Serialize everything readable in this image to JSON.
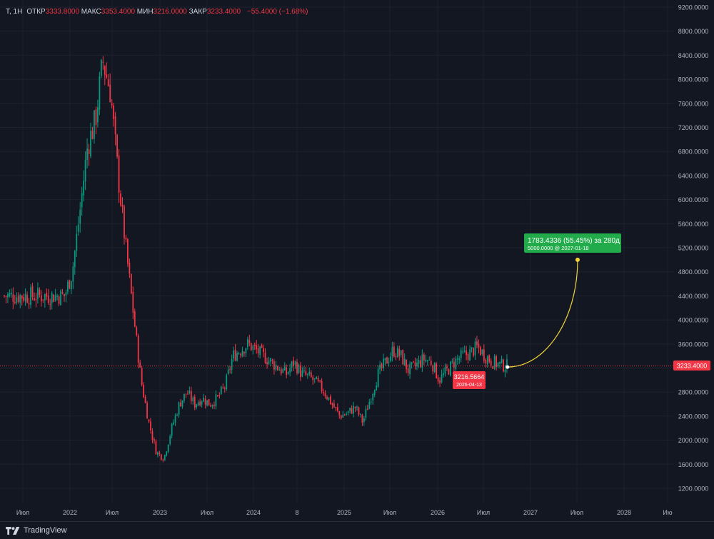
{
  "legend": {
    "symbol": "T, 1Н",
    "open_label": "ОТКР",
    "open": "3333.8000",
    "high_label": "МАКС",
    "high": "3353.4000",
    "low_label": "МИН",
    "low": "3216.0000",
    "close_label": "ЗАКР",
    "close": "3233.4000",
    "change": "−55.4000 (−1.68%)"
  },
  "price_label": "3233.4000",
  "marker": {
    "price": "3216.5664",
    "date": "2026-04-13"
  },
  "target": {
    "line1": "1783.4336 (55.45%) за 280д",
    "line2": "5000.0000 @ 2027-01-18"
  },
  "brand": {
    "name": "TradingView"
  },
  "colors": {
    "up": "#089981",
    "down": "#f23645",
    "background": "#131722",
    "grid": "#1e222d",
    "axis_text": "#b2b5be",
    "projection": "#f2d43a",
    "target_bg": "#22ab4b",
    "marker_bg": "#f23645"
  },
  "chart_data": {
    "type": "candlestick",
    "y_axis": {
      "side": "right",
      "min": 1200,
      "max": 9200,
      "ticks": [
        "9200.0000",
        "8800.0000",
        "8400.0000",
        "8000.0000",
        "7600.0000",
        "7200.0000",
        "6800.0000",
        "6400.0000",
        "6000.0000",
        "5600.0000",
        "5200.0000",
        "4800.0000",
        "4400.0000",
        "4000.0000",
        "3600.0000",
        "3200.0000",
        "2800.0000",
        "2400.0000",
        "2000.0000",
        "1600.0000",
        "1200.0000"
      ]
    },
    "x_axis": {
      "ticks": [
        "Июл",
        "2022",
        "Июл",
        "2023",
        "Июл",
        "2024",
        "8",
        "2025",
        "Июл",
        "2026",
        "Июл",
        "2027",
        "Июл",
        "2028",
        "Ию"
      ]
    },
    "price_path": [
      [
        "2021-06",
        4400
      ],
      [
        "2021-07",
        4800
      ],
      [
        "2021-08",
        5800
      ],
      [
        "2021-09",
        6900
      ],
      [
        "2021-10",
        7300
      ],
      [
        "2021-11",
        8300
      ],
      [
        "2021-12",
        7800
      ],
      [
        "2022-01",
        6400
      ],
      [
        "2022-02",
        5200
      ],
      [
        "2022-03",
        4100
      ],
      [
        "2022-04",
        3000
      ],
      [
        "2022-05",
        2300
      ],
      [
        "2022-06",
        1800
      ],
      [
        "2022-07",
        1700
      ],
      [
        "2022-08",
        2200
      ],
      [
        "2022-09",
        2600
      ],
      [
        "2022-10",
        2800
      ],
      [
        "2022-11",
        2600
      ],
      [
        "2022-12",
        2700
      ],
      [
        "2023-01",
        2600
      ],
      [
        "2023-02",
        2700
      ],
      [
        "2023-03",
        2900
      ],
      [
        "2023-04",
        3400
      ],
      [
        "2023-05",
        3500
      ],
      [
        "2023-06",
        3600
      ],
      [
        "2023-07",
        3500
      ],
      [
        "2023-08",
        3400
      ],
      [
        "2023-09",
        3300
      ],
      [
        "2023-10",
        3200
      ],
      [
        "2023-11",
        3100
      ],
      [
        "2023-12",
        3300
      ],
      [
        "2024-01",
        3100
      ],
      [
        "2024-02",
        3050
      ],
      [
        "2024-03",
        2950
      ],
      [
        "2024-04",
        2800
      ],
      [
        "2024-05",
        2600
      ],
      [
        "2024-06",
        2400
      ],
      [
        "2024-07",
        2450
      ],
      [
        "2024-08",
        2550
      ],
      [
        "2024-09",
        2300
      ],
      [
        "2024-10",
        2700
      ],
      [
        "2024-11",
        3100
      ],
      [
        "2024-12",
        3300
      ],
      [
        "2025-01",
        3500
      ],
      [
        "2025-02",
        3400
      ],
      [
        "2025-03",
        3150
      ],
      [
        "2025-04",
        3250
      ],
      [
        "2025-05",
        3350
      ],
      [
        "2025-06",
        3300
      ],
      [
        "2025-07",
        3000
      ],
      [
        "2025-08",
        3150
      ],
      [
        "2025-09",
        3300
      ],
      [
        "2025-10",
        3400
      ],
      [
        "2025-11",
        3450
      ],
      [
        "2025-12",
        3550
      ],
      [
        "2026-01",
        3400
      ],
      [
        "2026-02",
        3300
      ],
      [
        "2026-03",
        3250
      ],
      [
        "2026-04",
        3233.4
      ]
    ],
    "last_close": 3233.4,
    "projection": {
      "from_date": "2026-04-13",
      "from_price": 3216.5664,
      "to_date": "2027-01-18",
      "to_price": 5000.0,
      "change": 1783.4336,
      "change_pct": 55.45,
      "days": 280
    },
    "grid": true,
    "legend_position": "top-left"
  }
}
